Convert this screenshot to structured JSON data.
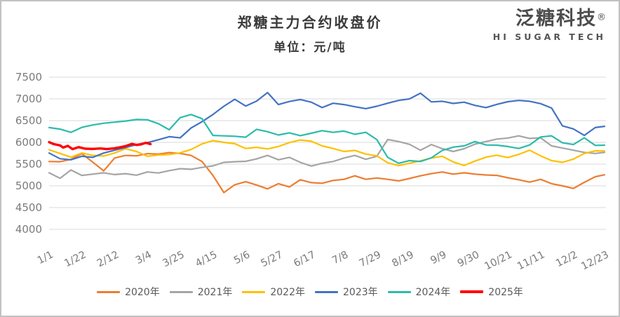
{
  "header": {
    "logo": {
      "name": "泛糖科技",
      "mark": "®",
      "tagline": "HI SUGAR TECH",
      "color": "#4d4d4d"
    }
  },
  "chart_data": {
    "type": "line",
    "title": "郑糖主力合约收盘价",
    "unit_label": "单位：元/吨",
    "ylabel": "",
    "xlabel": "",
    "ylim": [
      4000,
      7500
    ],
    "y_ticks": [
      7500,
      7000,
      6500,
      6000,
      5500,
      5000,
      4500,
      4000
    ],
    "grid": "horizontal-only",
    "legend_position": "bottom",
    "x_tick_labels": [
      "1/1",
      "1/22",
      "2/12",
      "3/4",
      "3/25",
      "4/15",
      "5/6",
      "5/27",
      "6/17",
      "7/8",
      "7/29",
      "8/19",
      "9/9",
      "9/30",
      "10/21",
      "11/11",
      "12/2",
      "12/23"
    ],
    "x_tick_days": [
      1,
      22,
      43,
      64,
      85,
      106,
      127,
      148,
      169,
      190,
      211,
      232,
      253,
      274,
      295,
      316,
      337,
      357
    ],
    "x_domain_days": [
      1,
      357
    ],
    "weekly_days": [
      1,
      8,
      15,
      22,
      29,
      36,
      43,
      50,
      57,
      64,
      71,
      78,
      85,
      92,
      99,
      106,
      113,
      120,
      127,
      134,
      141,
      148,
      155,
      162,
      169,
      176,
      183,
      190,
      197,
      204,
      211,
      218,
      225,
      232,
      239,
      246,
      253,
      260,
      267,
      274,
      281,
      288,
      295,
      302,
      309,
      316,
      323,
      330,
      337,
      344,
      351,
      357
    ],
    "axis_text_color": "#7b7b7b",
    "gridline_color": "#d9d9d9",
    "series": [
      {
        "name": "2020年",
        "color": "#ED7D31",
        "width": 2.2,
        "values": [
          5560,
          5555,
          5610,
          5740,
          5545,
          5345,
          5640,
          5700,
          5690,
          5740,
          5730,
          5765,
          5745,
          5700,
          5560,
          5240,
          4845,
          5025,
          5095,
          5020,
          4930,
          5050,
          4975,
          5140,
          5075,
          5060,
          5125,
          5150,
          5230,
          5150,
          5180,
          5150,
          5115,
          5170,
          5230,
          5280,
          5320,
          5270,
          5300,
          5270,
          5250,
          5240,
          5185,
          5140,
          5085,
          5150,
          5050,
          5000,
          4940,
          5080,
          5210,
          5255
        ]
      },
      {
        "name": "2021年",
        "color": "#A5A5A5",
        "width": 2.2,
        "values": [
          5300,
          5175,
          5365,
          5240,
          5270,
          5300,
          5260,
          5280,
          5245,
          5320,
          5295,
          5350,
          5395,
          5380,
          5425,
          5460,
          5540,
          5555,
          5565,
          5620,
          5700,
          5600,
          5655,
          5540,
          5455,
          5520,
          5560,
          5640,
          5700,
          5610,
          5680,
          6065,
          6020,
          5955,
          5820,
          5950,
          5855,
          5790,
          5855,
          5960,
          6020,
          6075,
          6100,
          6150,
          6090,
          6105,
          5920,
          5870,
          5820,
          5770,
          5745,
          5770
        ]
      },
      {
        "name": "2022年",
        "color": "#FFC000",
        "width": 2.2,
        "values": [
          5830,
          5745,
          5660,
          5755,
          5700,
          5685,
          5755,
          5855,
          5790,
          5680,
          5710,
          5720,
          5760,
          5835,
          5965,
          6040,
          6000,
          5970,
          5860,
          5885,
          5850,
          5905,
          5995,
          6055,
          6025,
          5920,
          5860,
          5790,
          5815,
          5730,
          5690,
          5530,
          5465,
          5520,
          5575,
          5640,
          5680,
          5550,
          5470,
          5570,
          5660,
          5705,
          5650,
          5725,
          5820,
          5690,
          5580,
          5540,
          5615,
          5745,
          5805,
          5800
        ]
      },
      {
        "name": "2023年",
        "color": "#4472C4",
        "width": 2.2,
        "values": [
          5755,
          5625,
          5600,
          5680,
          5655,
          5755,
          5820,
          5880,
          5950,
          5995,
          6060,
          6130,
          6105,
          6330,
          6475,
          6640,
          6830,
          6990,
          6835,
          6950,
          7145,
          6870,
          6940,
          6985,
          6925,
          6800,
          6900,
          6870,
          6820,
          6775,
          6830,
          6900,
          6965,
          7000,
          7130,
          6930,
          6945,
          6895,
          6925,
          6850,
          6800,
          6875,
          6935,
          6965,
          6945,
          6890,
          6790,
          6380,
          6310,
          6160,
          6340,
          6370
        ]
      },
      {
        "name": "2024年",
        "color": "#2CBBAA",
        "width": 2.2,
        "values": [
          6340,
          6305,
          6230,
          6345,
          6400,
          6440,
          6465,
          6490,
          6525,
          6520,
          6430,
          6290,
          6570,
          6640,
          6545,
          6160,
          6150,
          6140,
          6120,
          6300,
          6245,
          6170,
          6220,
          6155,
          6210,
          6270,
          6230,
          6260,
          6185,
          6230,
          6065,
          5655,
          5520,
          5580,
          5560,
          5645,
          5815,
          5890,
          5920,
          6020,
          5940,
          5935,
          5905,
          5860,
          5940,
          6125,
          6150,
          5990,
          5950,
          6105,
          5930,
          5935
        ]
      },
      {
        "name": "2025年",
        "color": "#FF0000",
        "width": 3.4,
        "days": [
          1,
          4,
          8,
          10,
          13,
          16,
          20,
          24,
          29,
          34,
          38,
          43,
          47,
          50,
          54,
          57,
          60,
          63,
          66
        ],
        "values": [
          6005,
          5960,
          5930,
          5880,
          5920,
          5845,
          5890,
          5855,
          5850,
          5860,
          5845,
          5865,
          5890,
          5915,
          5965,
          5940,
          5955,
          5990,
          5960
        ]
      }
    ]
  }
}
